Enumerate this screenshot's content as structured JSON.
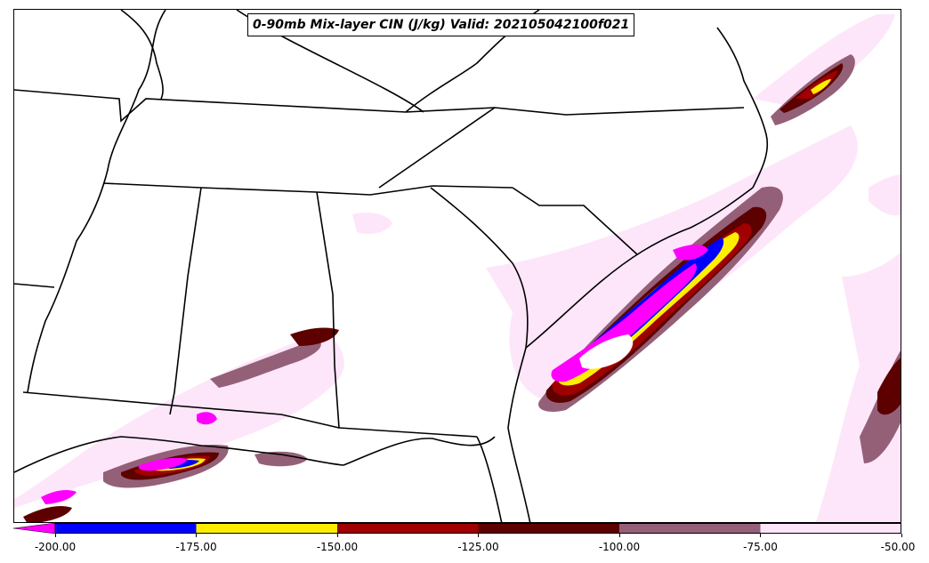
{
  "title": "0-90mb Mix-layer CIN (J/kg) Valid: 202105042100f021",
  "colorbar": {
    "ticks": [
      "-200.00",
      "-175.00",
      "-150.00",
      "-125.00",
      "-100.00",
      "-75.00",
      "-50.00"
    ],
    "bins": [
      {
        "range": "< -200",
        "color": "#ff00ff"
      },
      {
        "range": "-200 to -175",
        "color": "#0000ff"
      },
      {
        "range": "-175 to -150",
        "color": "#ffee00"
      },
      {
        "range": "-150 to -125",
        "color": "#a00000"
      },
      {
        "range": "-125 to -100",
        "color": "#5c0000"
      },
      {
        "range": "-100 to -75",
        "color": "#946078"
      },
      {
        "range": "-75 to -50",
        "color": "#fde6fa"
      }
    ]
  }
}
